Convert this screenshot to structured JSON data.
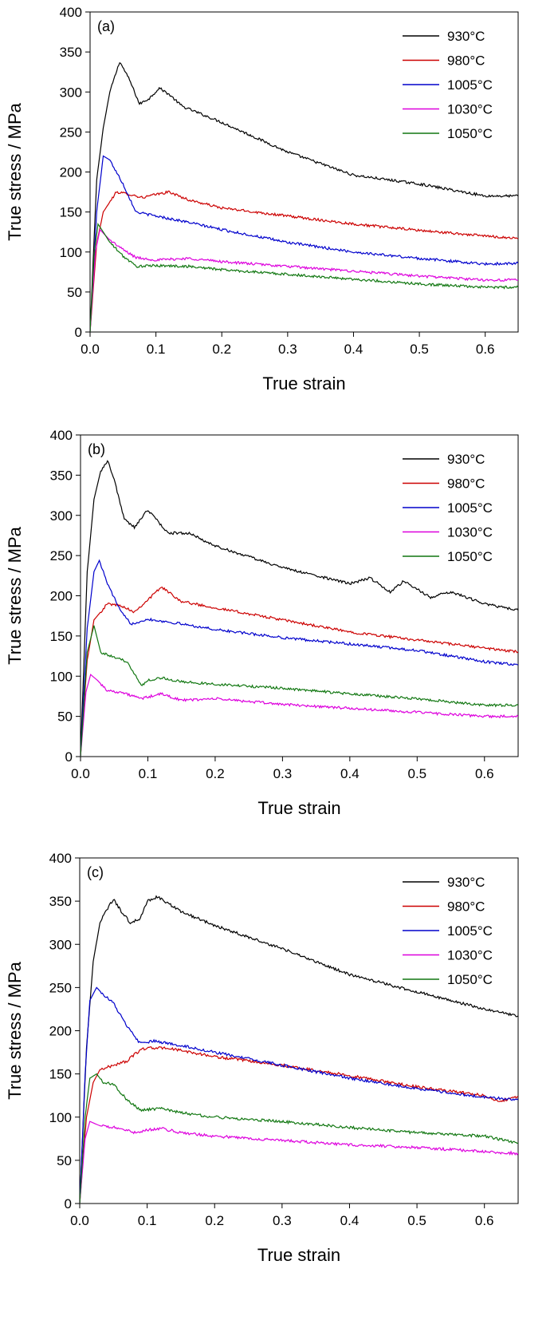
{
  "chart_data": [
    {
      "type": "line",
      "panel_label": "(a)",
      "xlabel": "True strain",
      "ylabel": "True stress / MPa",
      "xlim": [
        0,
        0.65
      ],
      "ylim": [
        0,
        400
      ],
      "xticks": [
        "0.0",
        "0.1",
        "0.2",
        "0.3",
        "0.4",
        "0.5",
        "0.6"
      ],
      "yticks": [
        "0",
        "50",
        "100",
        "150",
        "200",
        "250",
        "300",
        "350",
        "400"
      ],
      "grid": false,
      "legend_position": "top-right",
      "series": [
        {
          "name": "930°C",
          "color": "#000000",
          "x": [
            0,
            0.01,
            0.02,
            0.03,
            0.045,
            0.06,
            0.075,
            0.09,
            0.105,
            0.12,
            0.14,
            0.2,
            0.3,
            0.4,
            0.5,
            0.6,
            0.65
          ],
          "y": [
            0,
            190,
            255,
            300,
            338,
            315,
            285,
            292,
            305,
            297,
            282,
            262,
            225,
            196,
            185,
            170,
            170
          ]
        },
        {
          "name": "980°C",
          "color": "#cc0000",
          "x": [
            0,
            0.01,
            0.02,
            0.04,
            0.06,
            0.08,
            0.1,
            0.12,
            0.15,
            0.2,
            0.3,
            0.4,
            0.5,
            0.6,
            0.65
          ],
          "y": [
            0,
            110,
            150,
            175,
            172,
            168,
            172,
            175,
            165,
            155,
            145,
            135,
            127,
            120,
            117
          ]
        },
        {
          "name": "1005°C",
          "color": "#0000cc",
          "x": [
            0,
            0.01,
            0.02,
            0.03,
            0.05,
            0.07,
            0.1,
            0.15,
            0.2,
            0.3,
            0.4,
            0.5,
            0.6,
            0.65
          ],
          "y": [
            0,
            150,
            220,
            215,
            185,
            150,
            145,
            137,
            128,
            112,
            100,
            92,
            85,
            86
          ]
        },
        {
          "name": "1030°C",
          "color": "#dd00dd",
          "x": [
            0,
            0.008,
            0.015,
            0.03,
            0.05,
            0.07,
            0.1,
            0.15,
            0.2,
            0.3,
            0.4,
            0.5,
            0.6,
            0.65
          ],
          "y": [
            0,
            100,
            128,
            115,
            103,
            93,
            90,
            92,
            88,
            82,
            76,
            70,
            65,
            65
          ]
        },
        {
          "name": "1050°C",
          "color": "#117711",
          "x": [
            0,
            0.006,
            0.012,
            0.02,
            0.03,
            0.05,
            0.07,
            0.1,
            0.15,
            0.2,
            0.3,
            0.4,
            0.5,
            0.6,
            0.65
          ],
          "y": [
            0,
            95,
            135,
            125,
            112,
            95,
            82,
            83,
            82,
            78,
            72,
            66,
            60,
            56,
            56
          ]
        }
      ]
    },
    {
      "type": "line",
      "panel_label": "(b)",
      "xlabel": "True strain",
      "ylabel": "True stress / MPa",
      "xlim": [
        0,
        0.65
      ],
      "ylim": [
        0,
        400
      ],
      "xticks": [
        "0.0",
        "0.1",
        "0.2",
        "0.3",
        "0.4",
        "0.5",
        "0.6"
      ],
      "yticks": [
        "0",
        "50",
        "100",
        "150",
        "200",
        "250",
        "300",
        "350",
        "400"
      ],
      "grid": false,
      "legend_position": "top-right",
      "series": [
        {
          "name": "930°C",
          "color": "#000000",
          "x": [
            0,
            0.01,
            0.02,
            0.03,
            0.04,
            0.05,
            0.065,
            0.08,
            0.1,
            0.13,
            0.16,
            0.2,
            0.3,
            0.4,
            0.43,
            0.46,
            0.48,
            0.52,
            0.55,
            0.6,
            0.65
          ],
          "y": [
            0,
            230,
            320,
            355,
            368,
            345,
            295,
            285,
            307,
            278,
            278,
            262,
            235,
            215,
            222,
            205,
            218,
            198,
            205,
            190,
            182
          ]
        },
        {
          "name": "980°C",
          "color": "#cc0000",
          "x": [
            0,
            0.01,
            0.02,
            0.04,
            0.06,
            0.08,
            0.1,
            0.12,
            0.15,
            0.2,
            0.3,
            0.4,
            0.5,
            0.6,
            0.65
          ],
          "y": [
            0,
            120,
            170,
            190,
            188,
            180,
            195,
            211,
            193,
            185,
            170,
            155,
            145,
            135,
            130
          ]
        },
        {
          "name": "1005°C",
          "color": "#0000cc",
          "x": [
            0,
            0.01,
            0.02,
            0.028,
            0.04,
            0.06,
            0.075,
            0.1,
            0.15,
            0.2,
            0.3,
            0.4,
            0.5,
            0.6,
            0.65
          ],
          "y": [
            0,
            160,
            230,
            244,
            215,
            180,
            165,
            171,
            165,
            158,
            148,
            140,
            132,
            118,
            114
          ]
        },
        {
          "name": "1030°C",
          "color": "#dd00dd",
          "x": [
            0,
            0.008,
            0.015,
            0.025,
            0.04,
            0.06,
            0.09,
            0.12,
            0.15,
            0.2,
            0.3,
            0.4,
            0.5,
            0.6,
            0.65
          ],
          "y": [
            0,
            80,
            102,
            95,
            82,
            80,
            72,
            78,
            70,
            72,
            65,
            60,
            55,
            50,
            50
          ]
        },
        {
          "name": "1050°C",
          "color": "#117711",
          "x": [
            0,
            0.01,
            0.02,
            0.03,
            0.05,
            0.07,
            0.09,
            0.1,
            0.12,
            0.15,
            0.2,
            0.3,
            0.4,
            0.5,
            0.6,
            0.65
          ],
          "y": [
            0,
            130,
            163,
            130,
            123,
            118,
            88,
            95,
            98,
            93,
            90,
            85,
            78,
            72,
            64,
            64
          ]
        }
      ]
    },
    {
      "type": "line",
      "panel_label": "(c)",
      "xlabel": "True strain",
      "ylabel": "True stress / MPa",
      "xlim": [
        0,
        0.65
      ],
      "ylim": [
        0,
        400
      ],
      "xticks": [
        "0.0",
        "0.1",
        "0.2",
        "0.3",
        "0.4",
        "0.5",
        "0.6"
      ],
      "yticks": [
        "0",
        "50",
        "100",
        "150",
        "200",
        "250",
        "300",
        "350",
        "400"
      ],
      "grid": false,
      "legend_position": "top-right",
      "series": [
        {
          "name": "930°C",
          "color": "#000000",
          "x": [
            0,
            0.01,
            0.02,
            0.03,
            0.04,
            0.05,
            0.06,
            0.075,
            0.09,
            0.1,
            0.115,
            0.13,
            0.15,
            0.2,
            0.3,
            0.4,
            0.5,
            0.6,
            0.65
          ],
          "y": [
            0,
            180,
            280,
            325,
            340,
            352,
            340,
            325,
            330,
            350,
            355,
            348,
            338,
            322,
            295,
            265,
            245,
            225,
            217
          ]
        },
        {
          "name": "980°C",
          "color": "#cc0000",
          "x": [
            0,
            0.01,
            0.02,
            0.03,
            0.05,
            0.07,
            0.09,
            0.1,
            0.13,
            0.2,
            0.3,
            0.4,
            0.5,
            0.6,
            0.62,
            0.65
          ],
          "y": [
            0,
            100,
            140,
            155,
            160,
            165,
            178,
            180,
            180,
            170,
            160,
            148,
            135,
            125,
            118,
            124
          ]
        },
        {
          "name": "1005°C",
          "color": "#0000cc",
          "x": [
            0,
            0.008,
            0.015,
            0.025,
            0.035,
            0.05,
            0.07,
            0.09,
            0.11,
            0.15,
            0.2,
            0.3,
            0.4,
            0.5,
            0.6,
            0.65
          ],
          "y": [
            0,
            150,
            235,
            250,
            242,
            232,
            205,
            185,
            188,
            183,
            175,
            160,
            145,
            133,
            123,
            120
          ]
        },
        {
          "name": "1030°C",
          "color": "#dd00dd",
          "x": [
            0,
            0.008,
            0.015,
            0.03,
            0.06,
            0.08,
            0.1,
            0.12,
            0.15,
            0.2,
            0.3,
            0.4,
            0.5,
            0.6,
            0.65
          ],
          "y": [
            0,
            75,
            95,
            90,
            87,
            82,
            85,
            87,
            82,
            78,
            73,
            68,
            65,
            60,
            58
          ]
        },
        {
          "name": "1050°C",
          "color": "#117711",
          "x": [
            0,
            0.008,
            0.015,
            0.025,
            0.035,
            0.05,
            0.07,
            0.09,
            0.12,
            0.15,
            0.2,
            0.3,
            0.4,
            0.5,
            0.6,
            0.65
          ],
          "y": [
            0,
            100,
            145,
            150,
            140,
            138,
            120,
            108,
            110,
            105,
            100,
            95,
            88,
            82,
            78,
            70
          ]
        }
      ]
    }
  ]
}
